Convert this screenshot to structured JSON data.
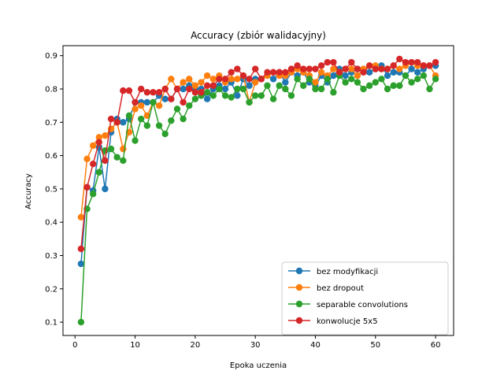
{
  "chart_data": {
    "type": "line",
    "title": "Accuracy (zbiór walidacyjny)",
    "xlabel": "Epoka uczenia",
    "ylabel": "Accuracy",
    "xlim": [
      -2,
      63
    ],
    "ylim": [
      0.06,
      0.93
    ],
    "xticks": [
      0,
      10,
      20,
      30,
      40,
      50,
      60
    ],
    "yticks": [
      0.1,
      0.2,
      0.3,
      0.4,
      0.5,
      0.6,
      0.7,
      0.8,
      0.9
    ],
    "grid": false,
    "legend_position": "lower-right",
    "marker": "circle",
    "x": [
      1,
      2,
      3,
      4,
      5,
      6,
      7,
      8,
      9,
      10,
      11,
      12,
      13,
      14,
      15,
      16,
      17,
      18,
      19,
      20,
      21,
      22,
      23,
      24,
      25,
      26,
      27,
      28,
      29,
      30,
      31,
      32,
      33,
      34,
      35,
      36,
      37,
      38,
      39,
      40,
      41,
      42,
      43,
      44,
      45,
      46,
      47,
      48,
      49,
      50,
      51,
      52,
      53,
      54,
      55,
      56,
      57,
      58,
      59,
      60
    ],
    "series": [
      {
        "name": "bez modyfikacji",
        "color": "#1f77b4",
        "values": [
          0.275,
          0.505,
          0.495,
          0.625,
          0.5,
          0.67,
          0.71,
          0.7,
          0.71,
          0.76,
          0.76,
          0.76,
          0.76,
          0.78,
          0.77,
          0.77,
          0.8,
          0.8,
          0.81,
          0.8,
          0.8,
          0.77,
          0.8,
          0.81,
          0.8,
          0.82,
          0.78,
          0.83,
          0.81,
          0.83,
          0.83,
          0.84,
          0.83,
          0.85,
          0.82,
          0.85,
          0.84,
          0.85,
          0.82,
          0.81,
          0.84,
          0.82,
          0.84,
          0.86,
          0.84,
          0.85,
          0.86,
          0.86,
          0.85,
          0.86,
          0.87,
          0.84,
          0.85,
          0.85,
          0.84,
          0.86,
          0.85,
          0.86,
          0.87,
          0.87
        ]
      },
      {
        "name": "bez dropout",
        "color": "#ff7f0e",
        "values": [
          0.415,
          0.59,
          0.63,
          0.655,
          0.66,
          0.68,
          0.7,
          0.62,
          0.67,
          0.74,
          0.75,
          0.72,
          0.76,
          0.75,
          0.8,
          0.83,
          0.8,
          0.82,
          0.83,
          0.81,
          0.82,
          0.84,
          0.83,
          0.84,
          0.82,
          0.83,
          0.83,
          0.84,
          0.76,
          0.82,
          0.83,
          0.84,
          0.85,
          0.84,
          0.84,
          0.85,
          0.86,
          0.85,
          0.84,
          0.82,
          0.85,
          0.84,
          0.86,
          0.85,
          0.86,
          0.86,
          0.84,
          0.86,
          0.87,
          0.87,
          0.86,
          0.86,
          0.87,
          0.86,
          0.87,
          0.88,
          0.87,
          0.87,
          0.87,
          0.84
        ]
      },
      {
        "name": "separable convolutions",
        "color": "#2ca02c",
        "values": [
          0.1,
          0.44,
          0.485,
          0.55,
          0.615,
          0.62,
          0.595,
          0.585,
          0.72,
          0.645,
          0.71,
          0.69,
          0.76,
          0.69,
          0.665,
          0.705,
          0.74,
          0.71,
          0.75,
          0.77,
          0.78,
          0.79,
          0.78,
          0.8,
          0.78,
          0.775,
          0.8,
          0.8,
          0.76,
          0.78,
          0.78,
          0.81,
          0.77,
          0.81,
          0.8,
          0.78,
          0.83,
          0.81,
          0.83,
          0.8,
          0.8,
          0.83,
          0.79,
          0.84,
          0.82,
          0.83,
          0.82,
          0.8,
          0.81,
          0.82,
          0.83,
          0.8,
          0.81,
          0.81,
          0.84,
          0.82,
          0.83,
          0.84,
          0.8,
          0.83
        ]
      },
      {
        "name": "konwolucje 5x5",
        "color": "#d62728",
        "values": [
          0.32,
          0.505,
          0.575,
          0.64,
          0.585,
          0.71,
          0.7,
          0.795,
          0.795,
          0.76,
          0.8,
          0.79,
          0.79,
          0.79,
          0.8,
          0.77,
          0.8,
          0.76,
          0.8,
          0.79,
          0.79,
          0.81,
          0.81,
          0.83,
          0.83,
          0.85,
          0.86,
          0.84,
          0.83,
          0.86,
          0.83,
          0.85,
          0.85,
          0.85,
          0.85,
          0.86,
          0.87,
          0.86,
          0.86,
          0.86,
          0.87,
          0.88,
          0.88,
          0.85,
          0.86,
          0.88,
          0.86,
          0.85,
          0.87,
          0.86,
          0.86,
          0.86,
          0.87,
          0.89,
          0.88,
          0.88,
          0.88,
          0.87,
          0.87,
          0.88
        ]
      }
    ]
  }
}
